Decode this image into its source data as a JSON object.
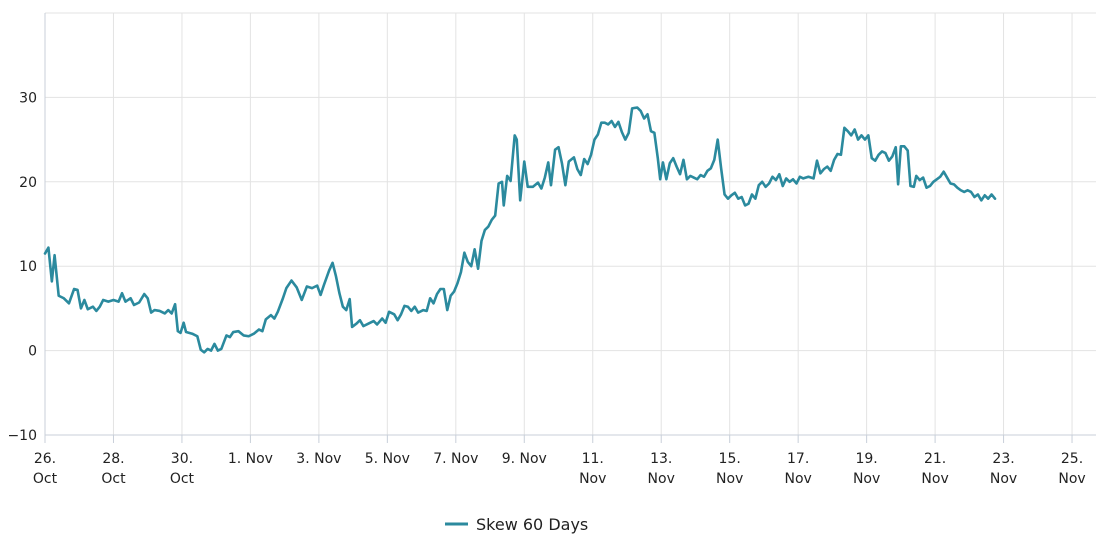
{
  "chart_data": {
    "type": "line",
    "title": "",
    "xlabel": "",
    "ylabel": "",
    "ylim": [
      -10,
      40
    ],
    "yticks": [
      -10,
      0,
      10,
      20,
      30
    ],
    "x_range_days": [
      0,
      30.7
    ],
    "x_ticks": [
      {
        "day": 0,
        "label": [
          "26.",
          "Oct"
        ]
      },
      {
        "day": 2,
        "label": [
          "28.",
          "Oct"
        ]
      },
      {
        "day": 4,
        "label": [
          "30.",
          "Oct"
        ]
      },
      {
        "day": 6,
        "label": [
          "1. Nov"
        ]
      },
      {
        "day": 8,
        "label": [
          "3. Nov"
        ]
      },
      {
        "day": 10,
        "label": [
          "5. Nov"
        ]
      },
      {
        "day": 12,
        "label": [
          "7. Nov"
        ]
      },
      {
        "day": 14,
        "label": [
          "9. Nov"
        ]
      },
      {
        "day": 16,
        "label": [
          "11.",
          "Nov"
        ]
      },
      {
        "day": 18,
        "label": [
          "13.",
          "Nov"
        ]
      },
      {
        "day": 20,
        "label": [
          "15.",
          "Nov"
        ]
      },
      {
        "day": 22,
        "label": [
          "17.",
          "Nov"
        ]
      },
      {
        "day": 24,
        "label": [
          "19.",
          "Nov"
        ]
      },
      {
        "day": 26,
        "label": [
          "21.",
          "Nov"
        ]
      },
      {
        "day": 28,
        "label": [
          "23.",
          "Nov"
        ]
      },
      {
        "day": 30,
        "label": [
          "25.",
          "Nov"
        ]
      }
    ],
    "grid": true,
    "legend": "bottom-center",
    "series": [
      {
        "name": "Skew 60 Days",
        "color": "#2b8a9e",
        "points": [
          [
            0.0,
            11.5
          ],
          [
            0.1,
            12.2
          ],
          [
            0.2,
            8.2
          ],
          [
            0.28,
            11.3
          ],
          [
            0.4,
            6.5
          ],
          [
            0.55,
            6.2
          ],
          [
            0.7,
            5.6
          ],
          [
            0.85,
            7.3
          ],
          [
            0.95,
            7.2
          ],
          [
            1.05,
            5.0
          ],
          [
            1.15,
            6.0
          ],
          [
            1.25,
            4.9
          ],
          [
            1.4,
            5.2
          ],
          [
            1.5,
            4.7
          ],
          [
            1.6,
            5.2
          ],
          [
            1.7,
            6.0
          ],
          [
            1.85,
            5.8
          ],
          [
            2.0,
            6.0
          ],
          [
            2.15,
            5.8
          ],
          [
            2.25,
            6.8
          ],
          [
            2.35,
            5.8
          ],
          [
            2.5,
            6.2
          ],
          [
            2.6,
            5.4
          ],
          [
            2.75,
            5.7
          ],
          [
            2.9,
            6.7
          ],
          [
            3.0,
            6.2
          ],
          [
            3.1,
            4.5
          ],
          [
            3.2,
            4.8
          ],
          [
            3.35,
            4.7
          ],
          [
            3.5,
            4.4
          ],
          [
            3.6,
            4.8
          ],
          [
            3.7,
            4.4
          ],
          [
            3.8,
            5.5
          ],
          [
            3.88,
            2.3
          ],
          [
            3.96,
            2.1
          ],
          [
            4.05,
            3.3
          ],
          [
            4.12,
            2.2
          ],
          [
            4.3,
            2.0
          ],
          [
            4.45,
            1.7
          ],
          [
            4.55,
            0.1
          ],
          [
            4.65,
            -0.2
          ],
          [
            4.75,
            0.2
          ],
          [
            4.85,
            0.0
          ],
          [
            4.95,
            0.8
          ],
          [
            5.05,
            0.0
          ],
          [
            5.15,
            0.2
          ],
          [
            5.3,
            1.8
          ],
          [
            5.4,
            1.6
          ],
          [
            5.5,
            2.2
          ],
          [
            5.65,
            2.3
          ],
          [
            5.8,
            1.8
          ],
          [
            5.95,
            1.7
          ],
          [
            6.1,
            2.0
          ],
          [
            6.25,
            2.5
          ],
          [
            6.35,
            2.3
          ],
          [
            6.45,
            3.7
          ],
          [
            6.6,
            4.2
          ],
          [
            6.7,
            3.8
          ],
          [
            6.8,
            4.6
          ],
          [
            6.95,
            6.2
          ],
          [
            7.05,
            7.4
          ],
          [
            7.2,
            8.3
          ],
          [
            7.35,
            7.5
          ],
          [
            7.5,
            6.0
          ],
          [
            7.65,
            7.6
          ],
          [
            7.8,
            7.4
          ],
          [
            7.95,
            7.7
          ],
          [
            8.05,
            6.6
          ],
          [
            8.15,
            7.8
          ],
          [
            8.3,
            9.5
          ],
          [
            8.4,
            10.4
          ],
          [
            8.5,
            8.8
          ],
          [
            8.6,
            6.8
          ],
          [
            8.7,
            5.2
          ],
          [
            8.8,
            4.8
          ],
          [
            8.9,
            6.1
          ],
          [
            8.97,
            2.8
          ],
          [
            9.1,
            3.2
          ],
          [
            9.2,
            3.6
          ],
          [
            9.3,
            2.9
          ],
          [
            9.45,
            3.2
          ],
          [
            9.6,
            3.5
          ],
          [
            9.7,
            3.1
          ],
          [
            9.85,
            3.8
          ],
          [
            9.95,
            3.3
          ],
          [
            10.05,
            4.6
          ],
          [
            10.2,
            4.3
          ],
          [
            10.3,
            3.6
          ],
          [
            10.4,
            4.3
          ],
          [
            10.5,
            5.3
          ],
          [
            10.6,
            5.2
          ],
          [
            10.7,
            4.7
          ],
          [
            10.8,
            5.2
          ],
          [
            10.9,
            4.5
          ],
          [
            11.05,
            4.8
          ],
          [
            11.15,
            4.7
          ],
          [
            11.25,
            6.2
          ],
          [
            11.35,
            5.6
          ],
          [
            11.45,
            6.7
          ],
          [
            11.55,
            7.3
          ],
          [
            11.65,
            7.3
          ],
          [
            11.75,
            4.8
          ],
          [
            11.85,
            6.5
          ],
          [
            11.95,
            7.0
          ],
          [
            12.05,
            8.0
          ],
          [
            12.15,
            9.3
          ],
          [
            12.25,
            11.6
          ],
          [
            12.35,
            10.5
          ],
          [
            12.45,
            10.0
          ],
          [
            12.55,
            12.0
          ],
          [
            12.65,
            9.7
          ],
          [
            12.75,
            13.0
          ],
          [
            12.85,
            14.3
          ],
          [
            12.95,
            14.7
          ],
          [
            13.05,
            15.5
          ],
          [
            13.15,
            16.0
          ],
          [
            13.25,
            19.8
          ],
          [
            13.35,
            20.0
          ],
          [
            13.4,
            17.2
          ],
          [
            13.5,
            20.7
          ],
          [
            13.6,
            20.1
          ],
          [
            13.72,
            25.5
          ],
          [
            13.78,
            25.0
          ],
          [
            13.88,
            17.8
          ],
          [
            14.0,
            22.4
          ],
          [
            14.1,
            19.4
          ],
          [
            14.25,
            19.4
          ],
          [
            14.4,
            19.9
          ],
          [
            14.5,
            19.2
          ],
          [
            14.6,
            20.5
          ],
          [
            14.7,
            22.3
          ],
          [
            14.78,
            19.6
          ],
          [
            14.9,
            23.8
          ],
          [
            15.0,
            24.1
          ],
          [
            15.1,
            22.2
          ],
          [
            15.2,
            19.6
          ],
          [
            15.3,
            22.4
          ],
          [
            15.45,
            22.9
          ],
          [
            15.55,
            21.5
          ],
          [
            15.65,
            20.8
          ],
          [
            15.75,
            22.7
          ],
          [
            15.85,
            22.1
          ],
          [
            15.95,
            23.2
          ],
          [
            16.05,
            25.0
          ],
          [
            16.15,
            25.6
          ],
          [
            16.25,
            27.0
          ],
          [
            16.35,
            27.0
          ],
          [
            16.45,
            26.8
          ],
          [
            16.55,
            27.2
          ],
          [
            16.65,
            26.5
          ],
          [
            16.75,
            27.1
          ],
          [
            16.85,
            25.9
          ],
          [
            16.95,
            25.0
          ],
          [
            17.05,
            25.8
          ],
          [
            17.15,
            28.7
          ],
          [
            17.3,
            28.8
          ],
          [
            17.4,
            28.4
          ],
          [
            17.5,
            27.5
          ],
          [
            17.6,
            28.0
          ],
          [
            17.7,
            26.0
          ],
          [
            17.8,
            25.8
          ],
          [
            17.9,
            22.8
          ],
          [
            17.97,
            20.3
          ],
          [
            18.05,
            22.3
          ],
          [
            18.15,
            20.3
          ],
          [
            18.25,
            22.2
          ],
          [
            18.35,
            22.8
          ],
          [
            18.45,
            21.8
          ],
          [
            18.55,
            20.9
          ],
          [
            18.65,
            22.6
          ],
          [
            18.75,
            20.3
          ],
          [
            18.85,
            20.7
          ],
          [
            18.95,
            20.5
          ],
          [
            19.05,
            20.3
          ],
          [
            19.15,
            20.8
          ],
          [
            19.25,
            20.6
          ],
          [
            19.35,
            21.3
          ],
          [
            19.45,
            21.6
          ],
          [
            19.55,
            22.6
          ],
          [
            19.65,
            25.0
          ],
          [
            19.75,
            21.6
          ],
          [
            19.85,
            18.5
          ],
          [
            19.95,
            18.0
          ],
          [
            20.05,
            18.4
          ],
          [
            20.15,
            18.7
          ],
          [
            20.25,
            18.0
          ],
          [
            20.35,
            18.2
          ],
          [
            20.45,
            17.2
          ],
          [
            20.55,
            17.4
          ],
          [
            20.65,
            18.5
          ],
          [
            20.75,
            18.0
          ],
          [
            20.85,
            19.6
          ],
          [
            20.95,
            20.0
          ],
          [
            21.05,
            19.4
          ],
          [
            21.15,
            19.8
          ],
          [
            21.25,
            20.6
          ],
          [
            21.35,
            20.2
          ],
          [
            21.45,
            20.9
          ],
          [
            21.55,
            19.5
          ],
          [
            21.65,
            20.4
          ],
          [
            21.75,
            20.0
          ],
          [
            21.85,
            20.3
          ],
          [
            21.95,
            19.8
          ],
          [
            22.05,
            20.6
          ],
          [
            22.15,
            20.4
          ],
          [
            22.3,
            20.6
          ],
          [
            22.45,
            20.4
          ],
          [
            22.55,
            22.5
          ],
          [
            22.65,
            21.0
          ],
          [
            22.75,
            21.5
          ],
          [
            22.85,
            21.8
          ],
          [
            22.95,
            21.3
          ],
          [
            23.05,
            22.6
          ],
          [
            23.15,
            23.3
          ],
          [
            23.25,
            23.2
          ],
          [
            23.35,
            26.4
          ],
          [
            23.45,
            26.0
          ],
          [
            23.55,
            25.5
          ],
          [
            23.65,
            26.2
          ],
          [
            23.75,
            25.0
          ],
          [
            23.85,
            25.5
          ],
          [
            23.95,
            25.0
          ],
          [
            24.05,
            25.5
          ],
          [
            24.15,
            22.8
          ],
          [
            24.25,
            22.5
          ],
          [
            24.35,
            23.2
          ],
          [
            24.45,
            23.6
          ],
          [
            24.55,
            23.4
          ],
          [
            24.65,
            22.5
          ],
          [
            24.75,
            23.0
          ],
          [
            24.85,
            24.1
          ],
          [
            24.92,
            19.7
          ],
          [
            25.0,
            24.2
          ],
          [
            25.1,
            24.2
          ],
          [
            25.2,
            23.7
          ],
          [
            25.28,
            19.5
          ],
          [
            25.38,
            19.4
          ],
          [
            25.45,
            20.7
          ],
          [
            25.55,
            20.2
          ],
          [
            25.65,
            20.5
          ],
          [
            25.75,
            19.3
          ],
          [
            25.85,
            19.5
          ],
          [
            25.95,
            20.0
          ],
          [
            26.05,
            20.3
          ],
          [
            26.15,
            20.6
          ],
          [
            26.25,
            21.2
          ],
          [
            26.35,
            20.5
          ],
          [
            26.45,
            19.8
          ],
          [
            26.55,
            19.7
          ],
          [
            26.65,
            19.3
          ],
          [
            26.75,
            19.0
          ],
          [
            26.85,
            18.8
          ],
          [
            26.95,
            19.0
          ],
          [
            27.05,
            18.8
          ],
          [
            27.15,
            18.2
          ],
          [
            27.25,
            18.5
          ],
          [
            27.35,
            17.8
          ],
          [
            27.45,
            18.4
          ],
          [
            27.55,
            18.0
          ],
          [
            27.65,
            18.5
          ],
          [
            27.75,
            18.0
          ]
        ]
      }
    ]
  }
}
